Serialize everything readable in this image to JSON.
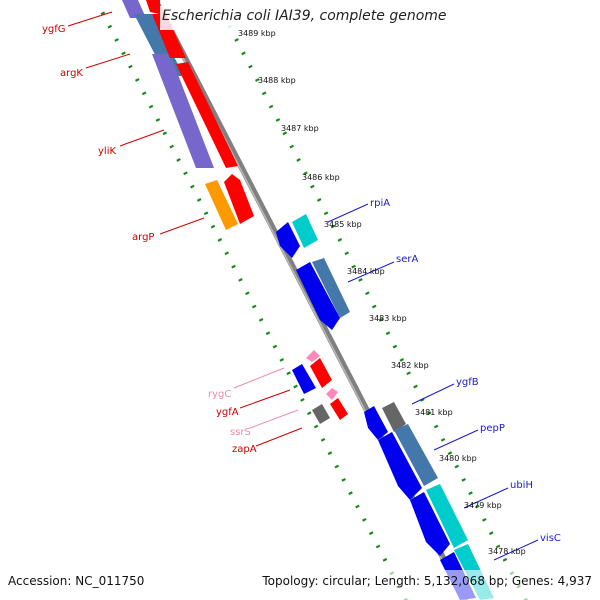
{
  "title": "Escherichia coli IAI39, complete genome",
  "footer": {
    "accession": "Accession: NC_011750",
    "summary": "Topology: circular; Length: 5,132,068 bp; Genes: 4,937"
  },
  "colors": {
    "backbone": "#808080",
    "tick_inner": "#1a8a1a",
    "tick_outer": "#1a8a1a",
    "label_red": "#cc0000",
    "label_blue": "#1a1acc",
    "label_pink": "#ee88aa",
    "gene_red": "#ff0000",
    "gene_purple": "#7766cc",
    "gene_steel": "#4477aa",
    "gene_orange": "#ff9900",
    "gene_blue": "#0000ee",
    "gene_cyan": "#00cccc",
    "gene_gray": "#666666",
    "gene_pink": "#ff88bb"
  },
  "kbp_labels": [
    "3489 kbp",
    "3488 kbp",
    "3487 kbp",
    "3486 kbp",
    "3485 kbp",
    "3484 kbp",
    "3483 kbp",
    "3482 kbp",
    "3481 kbp",
    "3480 kbp",
    "3479 kbp",
    "3478 kbp"
  ],
  "gene_labels_left": [
    "ygfG",
    "argK",
    "yliK",
    "argP",
    "rygC",
    "ygfA",
    "ssrS",
    "zapA"
  ],
  "gene_labels_right": [
    "rpiA",
    "serA",
    "ygfB",
    "pepP",
    "ubiH",
    "visC"
  ]
}
